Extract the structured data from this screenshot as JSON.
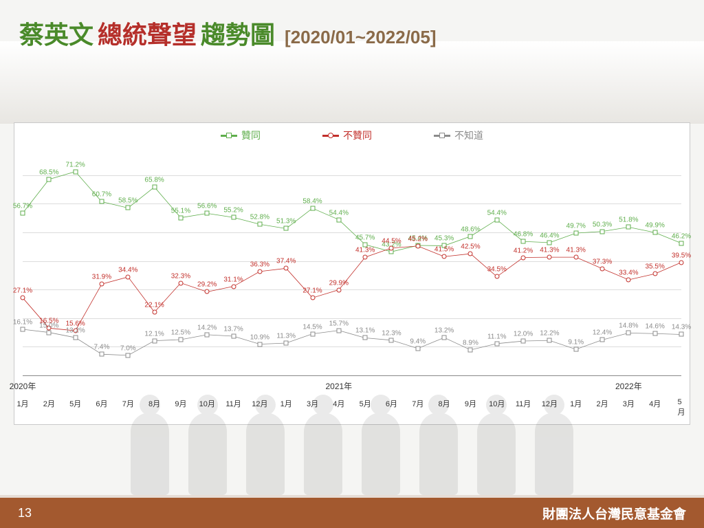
{
  "title": {
    "part1": {
      "text": "蔡英文",
      "color": "#4a8a2a"
    },
    "part2": {
      "text": "總統聲望",
      "color": "#b52f2a"
    },
    "part3": {
      "text": "趨勢圖",
      "color": "#4a8a2a"
    },
    "range": "[2020/01~2022/05]",
    "range_color": "#8a6a48"
  },
  "footer": {
    "page": "13",
    "org": "財團法人台灣民意基金會",
    "bg": "#a3592f"
  },
  "chart": {
    "type": "line",
    "background": "#ffffff",
    "border": "#c9c9c9",
    "grid_color": "#dcdcdc",
    "ylim": [
      0,
      80
    ],
    "grid_y": [
      10,
      20,
      30,
      40,
      50,
      60,
      70
    ],
    "label_fontsize": 10,
    "legend_fontsize": 14,
    "x_years": [
      {
        "label": "2020年",
        "at": 0
      },
      {
        "label": "2021年",
        "at": 12
      },
      {
        "label": "2022年",
        "at": 23
      }
    ],
    "x_months": [
      "1月",
      "2月",
      "5月",
      "6月",
      "7月",
      "8月",
      "9月",
      "10月",
      "11月",
      "12月",
      "1月",
      "3月",
      "4月",
      "5月",
      "6月",
      "7月",
      "8月",
      "9月",
      "10月",
      "11月",
      "12月",
      "1月",
      "2月",
      "3月",
      "4月",
      "5月"
    ],
    "series": [
      {
        "name": "贊同",
        "color": "#5fae4c",
        "marker": "square",
        "values": [
          56.7,
          68.5,
          71.2,
          60.7,
          58.5,
          65.8,
          55.1,
          56.6,
          55.2,
          52.8,
          51.3,
          58.4,
          54.4,
          45.7,
          43.2,
          45.4,
          45.3,
          48.6,
          54.4,
          46.8,
          46.4,
          49.7,
          50.3,
          51.8,
          49.9,
          46.2
        ]
      },
      {
        "name": "不贊同",
        "color": "#c22f2a",
        "marker": "circle",
        "values": [
          27.1,
          16.5,
          15.6,
          31.9,
          34.4,
          22.1,
          32.3,
          29.2,
          31.1,
          36.3,
          37.4,
          27.1,
          29.9,
          41.3,
          44.5,
          45.2,
          41.5,
          42.5,
          34.5,
          41.2,
          41.3,
          41.3,
          37.3,
          33.4,
          35.5,
          39.5
        ]
      },
      {
        "name": "不知道",
        "color": "#8b8b8b",
        "marker": "square",
        "values": [
          16.1,
          15.0,
          13.2,
          7.4,
          7.0,
          12.1,
          12.5,
          14.2,
          13.7,
          10.9,
          11.3,
          14.5,
          15.7,
          13.1,
          12.3,
          9.4,
          13.2,
          8.9,
          11.1,
          12.0,
          12.2,
          9.1,
          12.4,
          14.8,
          14.6,
          14.3
        ]
      }
    ]
  }
}
